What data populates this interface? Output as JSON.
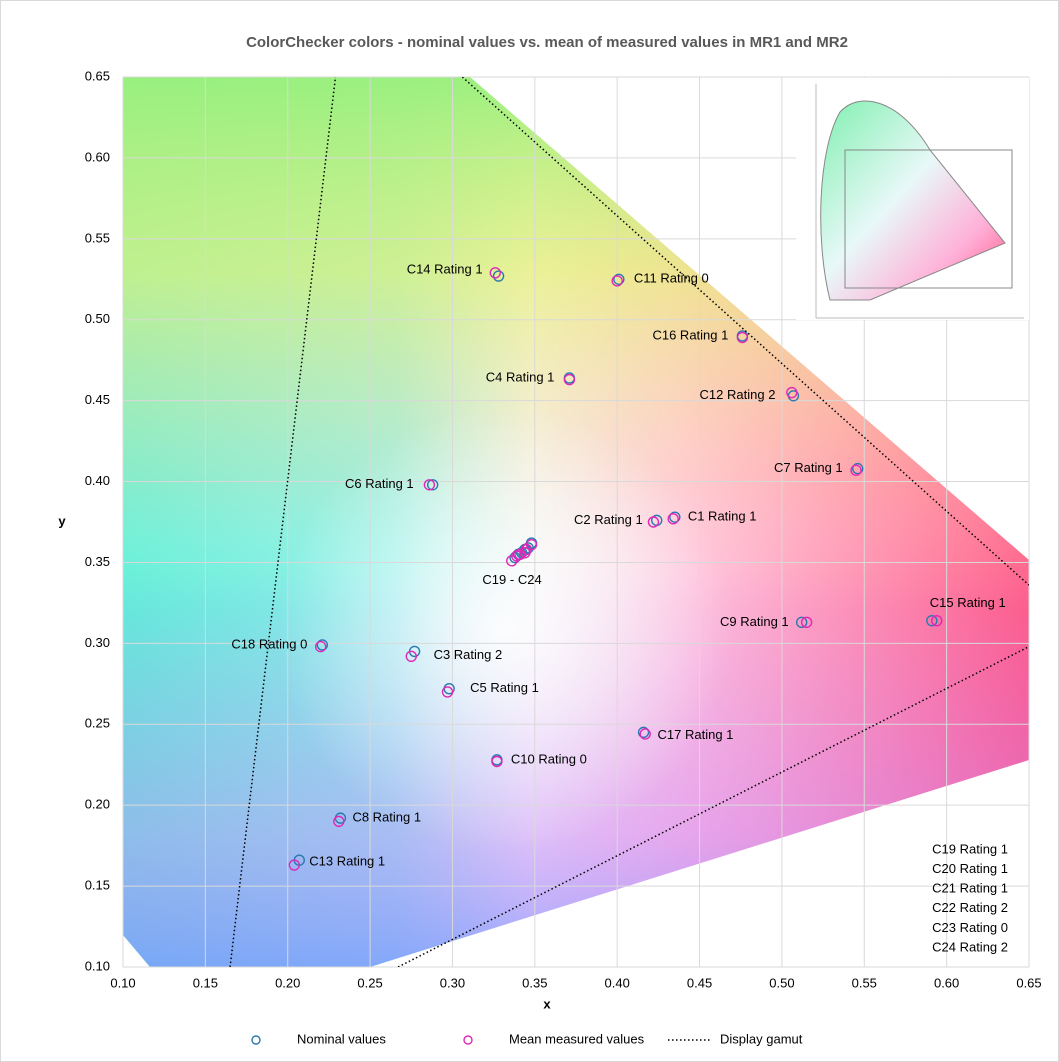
{
  "chart_data": {
    "type": "scatter",
    "title": "ColorChecker colors - nominal values vs. mean of measured values in MR1 and MR2",
    "x_label": "x",
    "y_label": "y",
    "xlim": [
      0.1,
      0.65
    ],
    "ylim": [
      0.1,
      0.65
    ],
    "xticks": [
      {
        "value": 0.1,
        "label": "0.10"
      },
      {
        "value": 0.15,
        "label": "0.15"
      },
      {
        "value": 0.2,
        "label": "0.20"
      },
      {
        "value": 0.25,
        "label": "0.25"
      },
      {
        "value": 0.3,
        "label": "0.30"
      },
      {
        "value": 0.35,
        "label": "0.35"
      },
      {
        "value": 0.4,
        "label": "0.40"
      },
      {
        "value": 0.45,
        "label": "0.45"
      },
      {
        "value": 0.5,
        "label": "0.50"
      },
      {
        "value": 0.55,
        "label": "0.55"
      },
      {
        "value": 0.6,
        "label": "0.60"
      },
      {
        "value": 0.65,
        "label": "0.65"
      }
    ],
    "yticks": [
      {
        "value": 0.1,
        "label": "0.10"
      },
      {
        "value": 0.15,
        "label": "0.15"
      },
      {
        "value": 0.2,
        "label": "0.20"
      },
      {
        "value": 0.25,
        "label": "0.25"
      },
      {
        "value": 0.3,
        "label": "0.30"
      },
      {
        "value": 0.35,
        "label": "0.35"
      },
      {
        "value": 0.4,
        "label": "0.40"
      },
      {
        "value": 0.45,
        "label": "0.45"
      },
      {
        "value": 0.5,
        "label": "0.50"
      },
      {
        "value": 0.55,
        "label": "0.55"
      },
      {
        "value": 0.6,
        "label": "0.60"
      },
      {
        "value": 0.65,
        "label": "0.65"
      }
    ],
    "grid": true,
    "legend": "bottom",
    "series": [
      {
        "name": "Nominal values",
        "type": "scatter",
        "color": "#2a7ab0",
        "x": [
          0.435,
          0.424,
          0.277,
          0.371,
          0.298,
          0.288,
          0.546,
          0.232,
          0.512,
          0.327,
          0.401,
          0.507,
          0.207,
          0.328,
          0.591,
          0.476,
          0.416,
          0.221,
          0.348,
          0.346,
          0.344,
          0.342,
          0.34,
          0.338
        ],
        "y": [
          0.378,
          0.376,
          0.295,
          0.464,
          0.272,
          0.398,
          0.408,
          0.192,
          0.313,
          0.228,
          0.525,
          0.453,
          0.166,
          0.527,
          0.314,
          0.49,
          0.245,
          0.299,
          0.362,
          0.359,
          0.358,
          0.356,
          0.355,
          0.353
        ]
      },
      {
        "name": "Mean measured values",
        "type": "scatter",
        "color": "#e028b8",
        "x": [
          0.434,
          0.422,
          0.275,
          0.371,
          0.297,
          0.286,
          0.545,
          0.231,
          0.515,
          0.327,
          0.4,
          0.506,
          0.204,
          0.326,
          0.594,
          0.476,
          0.417,
          0.22,
          0.348,
          0.345,
          0.344,
          0.341,
          0.339,
          0.336
        ],
        "y": [
          0.377,
          0.375,
          0.292,
          0.463,
          0.27,
          0.398,
          0.407,
          0.19,
          0.313,
          0.227,
          0.524,
          0.455,
          0.163,
          0.529,
          0.314,
          0.489,
          0.244,
          0.298,
          0.361,
          0.358,
          0.356,
          0.355,
          0.354,
          0.351
        ]
      },
      {
        "name": "Display gamut",
        "type": "line",
        "color": "#000000",
        "x": [
          0.165,
          0.229,
          null,
          0.306,
          0.65,
          null,
          0.267,
          0.65
        ],
        "y": [
          0.1,
          0.65,
          null,
          0.65,
          0.336,
          null,
          0.1,
          0.298
        ]
      }
    ],
    "annotations": [
      "C1 Rating 1",
      "C2 Rating 1",
      "C3 Rating 2",
      "C4 Rating 1",
      "C5 Rating 1",
      "C6 Rating 1",
      "C7 Rating 1",
      "C8 Rating 1",
      "C9 Rating 1",
      "C10 Rating 0",
      "C11 Rating 0",
      "C12 Rating 2",
      "C13 Rating 1",
      "C14 Rating 1",
      "C15 Rating 1",
      "C16 Rating 1",
      "C17 Rating 1",
      "C18 Rating 0",
      "C19 - C24"
    ],
    "notes": [
      "C19 Rating 1",
      "C20 Rating 1",
      "C21 Rating 1",
      "C22 Rating 2",
      "C23 Rating 0",
      "C24 Rating 2"
    ]
  }
}
